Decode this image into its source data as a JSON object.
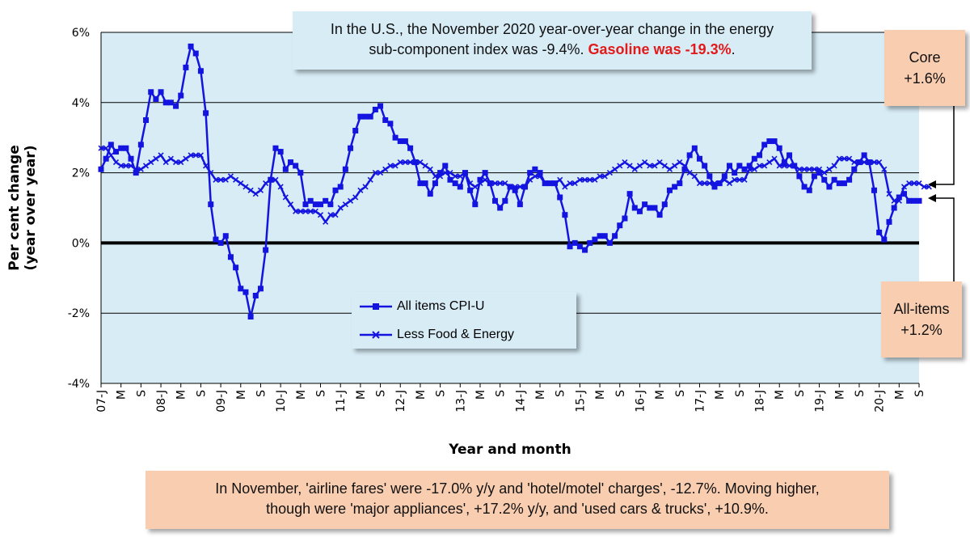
{
  "colors": {
    "series": "#1414e0",
    "plot_bg": "#d8ecf6",
    "callout_blue": "#d8ecf6",
    "callout_peach": "#f8cdb0",
    "highlight_red": "#e21a1a"
  },
  "callouts": {
    "top_line1": "In the U.S., the November 2020 year-over-year change in the energy",
    "top_line2_pre": "sub-component index was -9.4%.",
    "top_line2_red": "Gasoline was -19.3%",
    "top_line2_post": ".",
    "bottom_line1": "In November, 'airline fares' were -17.0% y/y and 'hotel/motel' charges', -12.7%. Moving higher,",
    "bottom_line2": "though were 'major appliances', +17.2% y/y, and 'used cars & trucks', +10.9%.",
    "core_title": "Core",
    "core_value": "+1.6%",
    "all_title": "All-items",
    "all_value": "+1.2%"
  },
  "chart_data": {
    "type": "line",
    "title": "",
    "xlabel": "Year and month",
    "ylabel": "Per cent change (year over year)",
    "ylim": [
      -4,
      6
    ],
    "yticks": [
      -4,
      -2,
      0,
      2,
      4,
      6
    ],
    "ytick_labels": [
      "-4%",
      "-2%",
      "0%",
      "2%",
      "4%",
      "6%"
    ],
    "grid": true,
    "legend_position": "center",
    "x_start": "2007-01",
    "x_end": "2020-11",
    "x_tick_labels": [
      "07-J",
      "M",
      "S",
      "08-J",
      "M",
      "S",
      "09-J",
      "M",
      "S",
      "10-J",
      "M",
      "S",
      "11-J",
      "M",
      "S",
      "12-J",
      "M",
      "S",
      "13-J",
      "M",
      "S",
      "14-J",
      "M",
      "S",
      "15-J",
      "M",
      "S",
      "16-J",
      "M",
      "S",
      "17-J",
      "M",
      "S",
      "18-J",
      "M",
      "S",
      "19-J",
      "M",
      "S",
      "20-J",
      "M",
      "S"
    ],
    "series": [
      {
        "name": "All items CPI-U",
        "marker": "square",
        "values": [
          2.1,
          2.4,
          2.8,
          2.6,
          2.7,
          2.7,
          2.4,
          2.0,
          2.8,
          3.5,
          4.3,
          4.1,
          4.3,
          4.0,
          4.0,
          3.9,
          4.2,
          5.0,
          5.6,
          5.4,
          4.9,
          3.7,
          1.1,
          0.1,
          0.0,
          0.2,
          -0.4,
          -0.7,
          -1.3,
          -1.4,
          -2.1,
          -1.5,
          -1.3,
          -0.2,
          1.8,
          2.7,
          2.6,
          2.1,
          2.3,
          2.2,
          2.0,
          1.1,
          1.2,
          1.1,
          1.1,
          1.2,
          1.1,
          1.5,
          1.6,
          2.1,
          2.7,
          3.2,
          3.6,
          3.6,
          3.6,
          3.8,
          3.9,
          3.5,
          3.4,
          3.0,
          2.9,
          2.9,
          2.7,
          2.3,
          1.7,
          1.7,
          1.4,
          1.7,
          2.0,
          2.2,
          1.8,
          1.7,
          1.6,
          2.0,
          1.5,
          1.1,
          1.8,
          2.0,
          1.7,
          1.2,
          1.0,
          1.2,
          1.6,
          1.5,
          1.1,
          1.6,
          2.0,
          2.1,
          2.0,
          1.7,
          1.7,
          1.7,
          1.3,
          0.8,
          -0.1,
          0.0,
          -0.1,
          -0.2,
          0.0,
          0.1,
          0.2,
          0.2,
          0.0,
          0.2,
          0.5,
          0.7,
          1.4,
          1.0,
          0.9,
          1.1,
          1.0,
          1.0,
          0.8,
          1.1,
          1.5,
          1.6,
          1.7,
          2.1,
          2.5,
          2.7,
          2.4,
          2.2,
          1.9,
          1.6,
          1.7,
          1.9,
          2.2,
          2.0,
          2.2,
          2.1,
          2.2,
          2.4,
          2.5,
          2.8,
          2.9,
          2.9,
          2.7,
          2.3,
          2.5,
          2.2,
          1.9,
          1.6,
          1.5,
          1.9,
          2.0,
          1.8,
          1.6,
          1.8,
          1.7,
          1.7,
          1.8,
          2.1,
          2.3,
          2.5,
          2.3,
          1.5,
          0.3,
          0.1,
          0.6,
          1.0,
          1.3,
          1.4,
          1.2,
          1.2,
          1.2
        ]
      },
      {
        "name": "Less Food & Energy",
        "marker": "x",
        "values": [
          2.7,
          2.7,
          2.5,
          2.3,
          2.2,
          2.2,
          2.2,
          2.1,
          2.1,
          2.2,
          2.3,
          2.4,
          2.5,
          2.3,
          2.4,
          2.3,
          2.3,
          2.4,
          2.5,
          2.5,
          2.5,
          2.2,
          2.0,
          1.8,
          1.8,
          1.8,
          1.9,
          1.8,
          1.7,
          1.6,
          1.5,
          1.4,
          1.5,
          1.7,
          1.8,
          1.8,
          1.6,
          1.3,
          1.1,
          0.9,
          0.9,
          0.9,
          0.9,
          0.9,
          0.8,
          0.6,
          0.8,
          0.8,
          1.0,
          1.1,
          1.2,
          1.3,
          1.5,
          1.6,
          1.8,
          2.0,
          2.0,
          2.1,
          2.2,
          2.2,
          2.3,
          2.3,
          2.3,
          2.3,
          2.3,
          2.2,
          2.1,
          1.9,
          1.9,
          2.0,
          2.0,
          1.9,
          1.9,
          2.0,
          1.7,
          1.6,
          1.7,
          1.8,
          1.7,
          1.7,
          1.7,
          1.7,
          1.6,
          1.6,
          1.6,
          1.6,
          1.8,
          1.9,
          1.9,
          1.7,
          1.7,
          1.7,
          1.8,
          1.6,
          1.7,
          1.7,
          1.8,
          1.8,
          1.8,
          1.8,
          1.9,
          1.9,
          2.0,
          2.1,
          2.2,
          2.3,
          2.2,
          2.1,
          2.2,
          2.3,
          2.2,
          2.2,
          2.3,
          2.2,
          2.1,
          2.2,
          2.3,
          2.2,
          2.0,
          1.9,
          1.7,
          1.7,
          1.7,
          1.7,
          1.7,
          1.8,
          1.7,
          1.8,
          1.8,
          1.8,
          2.1,
          2.1,
          2.2,
          2.2,
          2.3,
          2.4,
          2.2,
          2.2,
          2.2,
          2.2,
          2.1,
          2.1,
          2.1,
          2.1,
          2.1,
          2.0,
          2.1,
          2.2,
          2.4,
          2.4,
          2.4,
          2.3,
          2.3,
          2.3,
          2.3,
          2.3,
          2.3,
          2.1,
          1.4,
          1.2,
          1.2,
          1.6,
          1.7,
          1.7,
          1.7,
          1.6,
          1.6
        ]
      }
    ]
  }
}
